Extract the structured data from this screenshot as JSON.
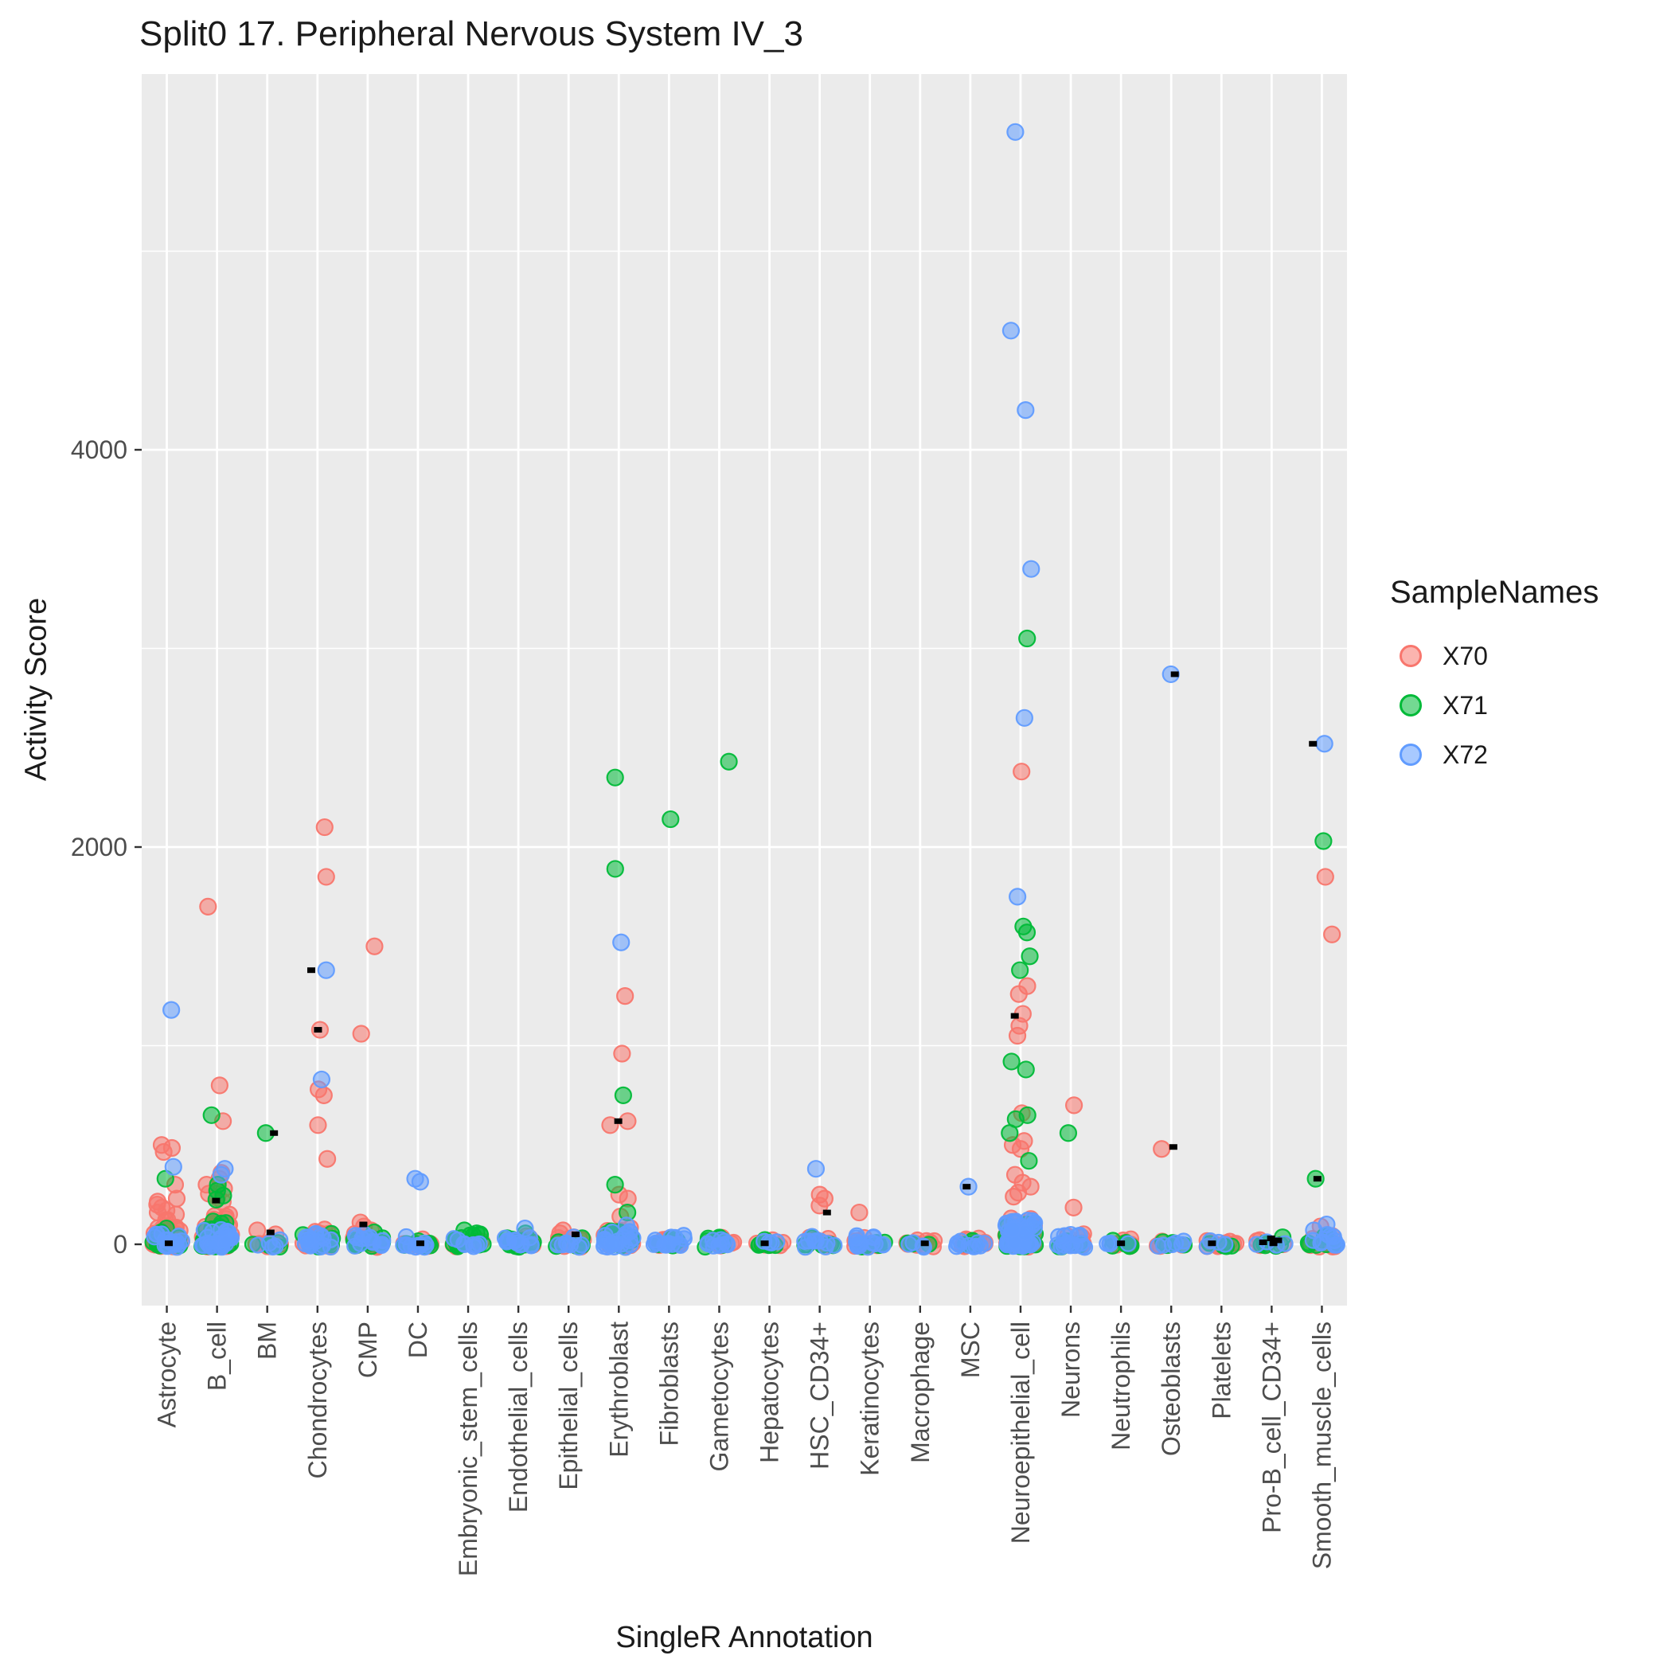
{
  "chart_data": {
    "type": "scatter",
    "title": "Split0 17. Peripheral Nervous System IV_3",
    "xlabel": "SingleR Annotation",
    "ylabel": "Activity Score",
    "ylim": [
      -300,
      5890
    ],
    "yticks": [
      0,
      2000,
      4000
    ],
    "minor_gridlines": [
      1000,
      3000,
      5000
    ],
    "panel_bg": "#EBEBEB",
    "grid_color": "#FFFFFF",
    "legend": {
      "title": "SampleNames",
      "position": "right"
    },
    "categories": [
      "Astrocyte",
      "B_cell",
      "BM",
      "Chondrocytes",
      "CMP",
      "DC",
      "Embryonic_stem_cells",
      "Endothelial_cells",
      "Epithelial_cells",
      "Erythroblast",
      "Fibroblasts",
      "Gametocytes",
      "Hepatocytes",
      "HSC_CD34+",
      "Keratinocytes",
      "Macrophage",
      "MSC",
      "Neuroepithelial_cell",
      "Neurons",
      "Neutrophils",
      "Osteoblasts",
      "Platelets",
      "Pro-B_cell_CD34+",
      "Smooth_muscle_cells"
    ],
    "series": [
      {
        "name": "X70",
        "color": "#F8766D",
        "points": [
          [
            0,
            500
          ],
          [
            0,
            485
          ],
          [
            0,
            465
          ],
          [
            0,
            300
          ],
          [
            0,
            230
          ],
          [
            0,
            215
          ],
          [
            0,
            200
          ],
          [
            0,
            185
          ],
          [
            0,
            170
          ],
          [
            0,
            160
          ],
          [
            0,
            150
          ],
          [
            1,
            1700
          ],
          [
            1,
            800
          ],
          [
            1,
            620
          ],
          [
            1,
            360
          ],
          [
            1,
            330
          ],
          [
            1,
            300
          ],
          [
            1,
            280
          ],
          [
            1,
            255
          ],
          [
            1,
            235
          ],
          [
            1,
            215
          ],
          [
            2,
            70
          ],
          [
            2,
            50
          ],
          [
            3,
            2100
          ],
          [
            3,
            1850
          ],
          [
            3,
            1080
          ],
          [
            3,
            780
          ],
          [
            3,
            750
          ],
          [
            3,
            600
          ],
          [
            3,
            430
          ],
          [
            4,
            1500
          ],
          [
            4,
            1060
          ],
          [
            4,
            110
          ],
          [
            4,
            90
          ],
          [
            4,
            70
          ],
          [
            8,
            70
          ],
          [
            8,
            55
          ],
          [
            8,
            35
          ],
          [
            9,
            1250
          ],
          [
            9,
            960
          ],
          [
            9,
            620
          ],
          [
            9,
            600
          ],
          [
            9,
            250
          ],
          [
            9,
            230
          ],
          [
            9,
            140
          ],
          [
            13,
            250
          ],
          [
            13,
            230
          ],
          [
            13,
            195
          ],
          [
            14,
            160
          ],
          [
            17,
            2380
          ],
          [
            17,
            1300
          ],
          [
            17,
            1260
          ],
          [
            17,
            1160
          ],
          [
            17,
            1100
          ],
          [
            17,
            1050
          ],
          [
            17,
            660
          ],
          [
            17,
            520
          ],
          [
            17,
            500
          ],
          [
            17,
            480
          ],
          [
            17,
            350
          ],
          [
            17,
            310
          ],
          [
            17,
            290
          ],
          [
            17,
            260
          ],
          [
            17,
            240
          ],
          [
            18,
            700
          ],
          [
            18,
            185
          ],
          [
            20,
            480
          ],
          [
            23,
            1850
          ],
          [
            23,
            1560
          ],
          [
            23,
            90
          ]
        ]
      },
      {
        "name": "X71",
        "color": "#00BA38",
        "points": [
          [
            0,
            330
          ],
          [
            1,
            650
          ],
          [
            1,
            300
          ],
          [
            1,
            270
          ],
          [
            1,
            245
          ],
          [
            1,
            225
          ],
          [
            2,
            560
          ],
          [
            4,
            60
          ],
          [
            6,
            70
          ],
          [
            6,
            55
          ],
          [
            6,
            45
          ],
          [
            7,
            55
          ],
          [
            9,
            2350
          ],
          [
            9,
            1890
          ],
          [
            9,
            750
          ],
          [
            9,
            300
          ],
          [
            9,
            160
          ],
          [
            10,
            2140
          ],
          [
            11,
            2430
          ],
          [
            13,
            30
          ],
          [
            17,
            3050
          ],
          [
            17,
            1600
          ],
          [
            17,
            1570
          ],
          [
            17,
            1450
          ],
          [
            17,
            1380
          ],
          [
            17,
            920
          ],
          [
            17,
            880
          ],
          [
            17,
            650
          ],
          [
            17,
            630
          ],
          [
            17,
            560
          ],
          [
            17,
            420
          ],
          [
            18,
            560
          ],
          [
            22,
            35
          ],
          [
            23,
            2030
          ],
          [
            23,
            330
          ]
        ]
      },
      {
        "name": "X72",
        "color": "#619CFF",
        "points": [
          [
            0,
            1180
          ],
          [
            0,
            390
          ],
          [
            1,
            380
          ],
          [
            1,
            350
          ],
          [
            3,
            1380
          ],
          [
            3,
            830
          ],
          [
            5,
            330
          ],
          [
            5,
            315
          ],
          [
            7,
            80
          ],
          [
            9,
            1520
          ],
          [
            9,
            95
          ],
          [
            13,
            380
          ],
          [
            16,
            290
          ],
          [
            17,
            5600
          ],
          [
            17,
            4600
          ],
          [
            17,
            4200
          ],
          [
            17,
            3400
          ],
          [
            17,
            2650
          ],
          [
            17,
            1750
          ],
          [
            20,
            2870
          ],
          [
            23,
            2520
          ],
          [
            23,
            100
          ],
          [
            23,
            70
          ]
        ]
      }
    ],
    "clusters": [
      [
        0,
        0,
        40,
        140
      ],
      [
        0,
        1,
        14,
        90
      ],
      [
        0,
        2,
        18,
        70
      ],
      [
        1,
        0,
        55,
        160
      ],
      [
        1,
        1,
        38,
        120
      ],
      [
        1,
        2,
        26,
        90
      ],
      [
        2,
        0,
        8,
        50
      ],
      [
        2,
        1,
        5,
        40
      ],
      [
        2,
        2,
        5,
        35
      ],
      [
        3,
        0,
        26,
        90
      ],
      [
        3,
        1,
        10,
        60
      ],
      [
        3,
        2,
        18,
        70
      ],
      [
        4,
        0,
        20,
        70
      ],
      [
        4,
        1,
        10,
        50
      ],
      [
        4,
        2,
        14,
        60
      ],
      [
        5,
        0,
        10,
        40
      ],
      [
        5,
        1,
        8,
        40
      ],
      [
        5,
        2,
        12,
        45
      ],
      [
        6,
        0,
        8,
        40
      ],
      [
        6,
        1,
        16,
        60
      ],
      [
        6,
        2,
        8,
        40
      ],
      [
        7,
        0,
        10,
        45
      ],
      [
        7,
        1,
        10,
        50
      ],
      [
        7,
        2,
        12,
        55
      ],
      [
        8,
        0,
        12,
        55
      ],
      [
        8,
        1,
        6,
        40
      ],
      [
        8,
        2,
        8,
        45
      ],
      [
        9,
        0,
        20,
        90
      ],
      [
        9,
        1,
        14,
        80
      ],
      [
        9,
        2,
        24,
        80
      ],
      [
        10,
        0,
        10,
        45
      ],
      [
        10,
        1,
        8,
        45
      ],
      [
        10,
        2,
        16,
        55
      ],
      [
        11,
        0,
        8,
        40
      ],
      [
        11,
        1,
        8,
        45
      ],
      [
        11,
        2,
        10,
        45
      ],
      [
        12,
        0,
        6,
        30
      ],
      [
        12,
        1,
        8,
        35
      ],
      [
        12,
        2,
        4,
        30
      ],
      [
        13,
        0,
        12,
        50
      ],
      [
        13,
        1,
        6,
        35
      ],
      [
        13,
        2,
        10,
        50
      ],
      [
        14,
        0,
        10,
        45
      ],
      [
        14,
        1,
        6,
        35
      ],
      [
        14,
        2,
        14,
        55
      ],
      [
        15,
        0,
        14,
        35
      ],
      [
        15,
        1,
        4,
        25
      ],
      [
        15,
        2,
        4,
        30
      ],
      [
        16,
        0,
        10,
        45
      ],
      [
        16,
        1,
        6,
        35
      ],
      [
        16,
        2,
        10,
        50
      ],
      [
        17,
        0,
        30,
        140
      ],
      [
        17,
        1,
        20,
        120
      ],
      [
        17,
        2,
        48,
        150
      ],
      [
        18,
        0,
        12,
        60
      ],
      [
        18,
        1,
        8,
        50
      ],
      [
        18,
        2,
        16,
        70
      ],
      [
        19,
        0,
        8,
        35
      ],
      [
        19,
        1,
        6,
        30
      ],
      [
        19,
        2,
        4,
        30
      ],
      [
        20,
        0,
        6,
        35
      ],
      [
        20,
        1,
        6,
        30
      ],
      [
        20,
        2,
        6,
        35
      ],
      [
        21,
        0,
        10,
        35
      ],
      [
        21,
        1,
        4,
        25
      ],
      [
        21,
        2,
        4,
        30
      ],
      [
        22,
        0,
        6,
        30
      ],
      [
        22,
        1,
        6,
        35
      ],
      [
        22,
        2,
        4,
        30
      ],
      [
        23,
        0,
        10,
        55
      ],
      [
        23,
        1,
        8,
        50
      ],
      [
        23,
        2,
        10,
        60
      ]
    ],
    "summary_marks": [
      [
        0,
        5
      ],
      [
        1,
        220
      ],
      [
        2,
        560
      ],
      [
        2,
        60
      ],
      [
        3,
        1380
      ],
      [
        3,
        1080
      ],
      [
        4,
        100
      ],
      [
        5,
        5
      ],
      [
        8,
        50
      ],
      [
        9,
        620
      ],
      [
        12,
        5
      ],
      [
        13,
        160
      ],
      [
        15,
        5
      ],
      [
        16,
        290
      ],
      [
        17,
        1150
      ],
      [
        19,
        5
      ],
      [
        20,
        2870
      ],
      [
        20,
        490
      ],
      [
        21,
        5
      ],
      [
        22,
        30
      ],
      [
        22,
        20
      ],
      [
        22,
        10
      ],
      [
        22,
        5
      ],
      [
        23,
        2520
      ],
      [
        23,
        330
      ]
    ]
  }
}
